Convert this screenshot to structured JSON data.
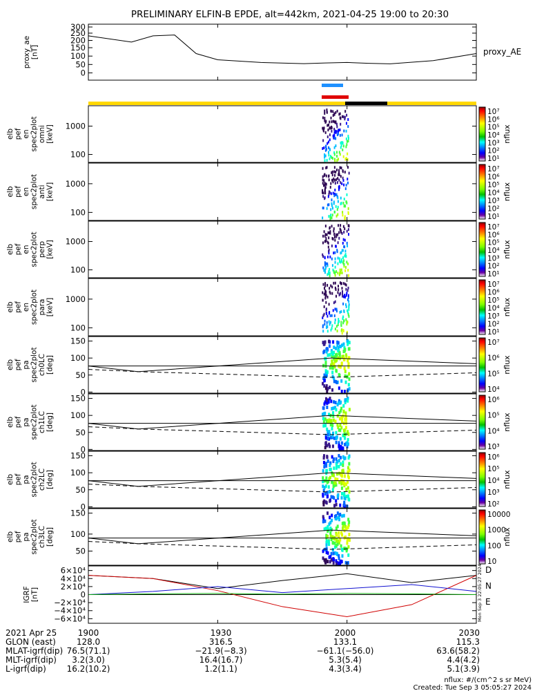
{
  "title": "PRELIMINARY ELFIN-B EPDE, alt=442km, 2021-04-25 19:00 to 20:30",
  "colors": {
    "axis": "#000000",
    "yellow": "#ffd800",
    "black_bar": "#000000",
    "blue_bar": "#1e90ff",
    "red_bar": "#e00000",
    "bx": "#d00000",
    "by": "#1010d0",
    "bz": "#10b010",
    "btot": "#000000"
  },
  "panels": [
    {
      "id": "proxy_ae",
      "ylabel": [
        "proxy_ae",
        "[nT]"
      ],
      "right_label": "proxy_AE",
      "yticks": [
        "300",
        "250",
        "200",
        "150",
        "100",
        "50",
        "0"
      ]
    },
    {
      "id": "omni",
      "ylabel": [
        "elb",
        "pef",
        "en",
        "spec2plot",
        "omni",
        "[keV]"
      ],
      "yticks": [
        "1000",
        "100"
      ],
      "cbar_ticks": [
        "10⁷",
        "10⁶",
        "10⁵",
        "10⁴",
        "10³",
        "10²",
        "10¹"
      ],
      "cbar_label": "nflux"
    },
    {
      "id": "anti",
      "ylabel": [
        "elb",
        "pef",
        "en",
        "spec2plot",
        "anti",
        "[keV]"
      ],
      "yticks": [
        "1000",
        "100"
      ],
      "cbar_ticks": [
        "10⁷",
        "10⁶",
        "10⁵",
        "10⁴",
        "10³",
        "10²",
        "10¹"
      ],
      "cbar_label": "nflux"
    },
    {
      "id": "perp",
      "ylabel": [
        "elb",
        "pef",
        "en",
        "spec2plot",
        "perp",
        "[keV]"
      ],
      "yticks": [
        "1000",
        "100"
      ],
      "cbar_ticks": [
        "10⁷",
        "10⁶",
        "10⁵",
        "10⁴",
        "10³",
        "10²",
        "10¹"
      ],
      "cbar_label": "nflux"
    },
    {
      "id": "para",
      "ylabel": [
        "elb",
        "pef",
        "en",
        "spec2plot",
        "para",
        "[keV]"
      ],
      "yticks": [
        "1000",
        "100"
      ],
      "cbar_ticks": [
        "10⁷",
        "10⁶",
        "10⁵",
        "10⁴",
        "10³",
        "10²",
        "10¹"
      ],
      "cbar_label": "nflux"
    },
    {
      "id": "ch0",
      "ylabel": [
        "elb",
        "pef",
        "pa",
        "spec2plot",
        "ch0LC",
        "[deg]"
      ],
      "yticks": [
        "150",
        "100",
        "50",
        "0"
      ],
      "cbar_ticks": [
        "10⁷",
        "10⁶",
        "10⁵",
        "10⁴"
      ],
      "cbar_label": "nflux"
    },
    {
      "id": "ch1",
      "ylabel": [
        "elb",
        "pef",
        "pa",
        "spec2plot",
        "ch1LC",
        "[deg]"
      ],
      "yticks": [
        "150",
        "100",
        "50",
        "0"
      ],
      "cbar_ticks": [
        "10⁶",
        "10⁵",
        "10⁴",
        "10³"
      ],
      "cbar_label": "nflux"
    },
    {
      "id": "ch2",
      "ylabel": [
        "elb",
        "pef",
        "pa",
        "spec2plot",
        "ch2LC",
        "[deg]"
      ],
      "yticks": [
        "150",
        "100",
        "50",
        "0"
      ],
      "cbar_ticks": [
        "10⁶",
        "10⁵",
        "10⁴",
        "10³",
        "10²"
      ],
      "cbar_label": "nflux"
    },
    {
      "id": "ch3",
      "ylabel": [
        "elb",
        "pef",
        "pa",
        "spec2plot",
        "ch3LC",
        "[deg]"
      ],
      "yticks": [
        "150",
        "100",
        "50"
      ],
      "cbar_ticks": [
        "10000",
        "1000",
        "100",
        "10"
      ],
      "cbar_label": "nflux"
    },
    {
      "id": "igrf",
      "ylabel": [
        "IGRF",
        "[nT]"
      ],
      "yticks": [
        "6×10⁴",
        "4×10⁴",
        "2×10⁴",
        "0",
        "−2×10⁴",
        "−4×10⁴",
        "−6×10⁴"
      ],
      "right_labels": [
        "D",
        "N",
        "E"
      ],
      "side_text": "Mon Sep 3 22:05:27 2024"
    }
  ],
  "chart_data": {
    "type": "spectrogram",
    "x_range": [
      "19:00",
      "20:30"
    ],
    "proxy_ae": {
      "x": [
        "19:00",
        "19:10",
        "19:15",
        "19:20",
        "19:25",
        "19:30",
        "19:40",
        "19:50",
        "19:55",
        "20:00",
        "20:05",
        "20:10",
        "20:20",
        "20:30"
      ],
      "y": [
        250,
        215,
        250,
        255,
        150,
        115,
        100,
        93,
        97,
        100,
        95,
        92,
        110,
        150
      ],
      "ylim": [
        0,
        300
      ]
    },
    "igrf": {
      "x": [
        "19:00",
        "19:15",
        "19:30",
        "19:45",
        "20:00",
        "20:15",
        "20:30"
      ],
      "btot": [
        48000,
        40000,
        15000,
        35000,
        52000,
        30000,
        48000
      ],
      "bx": [
        48000,
        40000,
        10000,
        -30000,
        -55000,
        -25000,
        48000
      ],
      "by": [
        0,
        8000,
        20000,
        5000,
        15000,
        25000,
        8000
      ],
      "bz": [
        0,
        2000,
        3000,
        1000,
        3000,
        2000,
        0
      ],
      "ylim": [
        -60000,
        60000
      ]
    }
  },
  "footer": {
    "rows": [
      {
        "label": "2021 Apr 25",
        "vals": [
          "1900",
          "1930",
          "2000",
          "2030"
        ]
      },
      {
        "label": "GLON (east)",
        "vals": [
          "128.0",
          "316.5",
          "133.1",
          "115.3"
        ]
      },
      {
        "label": "MLAT-igrf(dip)",
        "vals": [
          "76.5(71.1)",
          "−21.9(−8.3)",
          "−61.1(−56.0)",
          "63.6(58.2)"
        ]
      },
      {
        "label": "MLT-igrf(dip)",
        "vals": [
          "3.2(3.0)",
          "16.4(16.7)",
          "5.3(5.4)",
          "4.4(4.2)"
        ]
      },
      {
        "label": "L-igrf(dip)",
        "vals": [
          "16.2(10.2)",
          "1.2(1.1)",
          "4.3(3.4)",
          "5.1(3.9)"
        ]
      }
    ],
    "units": "nflux: #/(cm^2 s sr MeV)",
    "created": "Created: Tue Sep  3 05:05:27 2024"
  }
}
